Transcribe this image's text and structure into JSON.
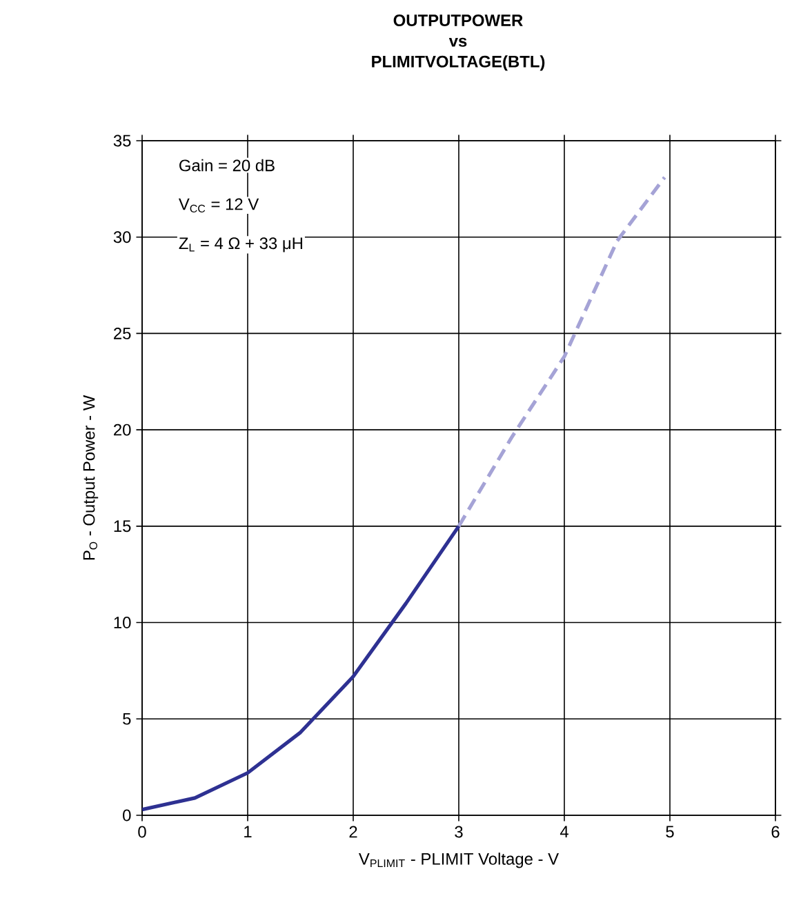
{
  "chart_data": {
    "type": "line",
    "title": "OUTPUTPOWER vs PLIMITVOLTAGE(BTL)",
    "xlabel": "V$_{PLIMIT}$ - PLIMIT Voltage - V",
    "ylabel": "P$_{O}$ - Output Power - W",
    "annotations": [
      "Gain = 20 dB",
      "V$_{CC}$ = 12 V",
      "Z$_{L}$ = 4 Ω + 33 μH"
    ],
    "series": [
      {
        "color": "#2e3192",
        "line_style": "solid",
        "x": [
          0,
          0.5,
          1,
          1.5,
          2,
          2.5,
          3
        ],
        "values": [
          0.3,
          0.9,
          2.2,
          4.3,
          7.2,
          11,
          15
        ]
      },
      {
        "color": "#a5a3d6",
        "line_style": "dashed",
        "x": [
          3,
          3.5,
          4,
          4.5,
          4.95
        ],
        "values": [
          15,
          19.6,
          23.8,
          29.8,
          33.1
        ]
      }
    ],
    "xlim": [
      0,
      6
    ],
    "xticks": [
      0,
      1,
      2,
      3,
      4,
      5,
      6
    ],
    "ylim": [
      0,
      35
    ],
    "yticks": [
      0,
      5,
      10,
      15,
      20,
      25,
      30,
      35
    ],
    "grid": true,
    "marker": "none"
  }
}
